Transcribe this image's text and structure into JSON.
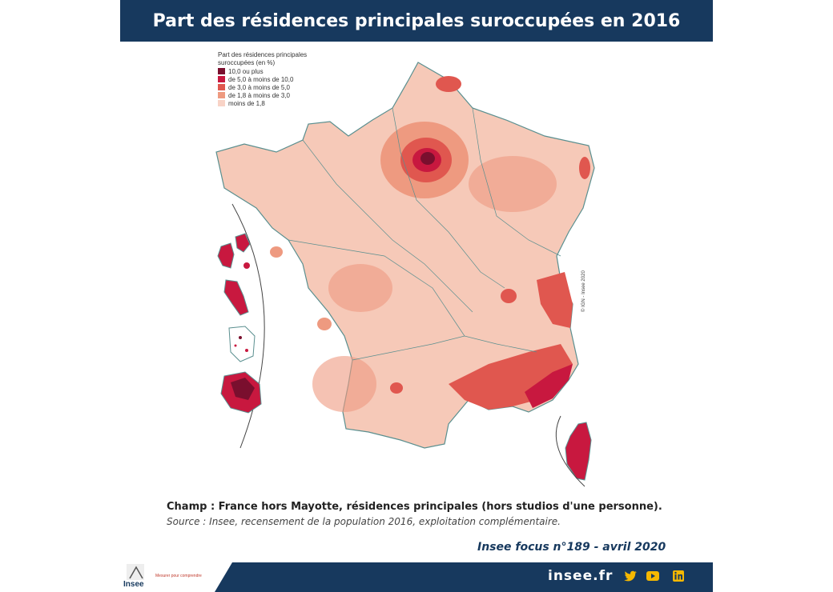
{
  "header": {
    "title": "Part des résidences principales suroccupées en 2016"
  },
  "legend": {
    "title": "Part des résidences principales suroccupées (en %)",
    "items": [
      {
        "label": "10,0 ou plus",
        "color": "#7a0f2e"
      },
      {
        "label": "de 5,0 à moins de 10,0",
        "color": "#c8183f"
      },
      {
        "label": "de 3,0 à moins de 5,0",
        "color": "#e0574f"
      },
      {
        "label": "de 1,8 à moins de 3,0",
        "color": "#ee9a80"
      },
      {
        "label": "moins de 1,8",
        "color": "#f8d3c6"
      }
    ]
  },
  "map": {
    "copyright": "© IGN - Insee 2020"
  },
  "notes": {
    "champ": "Champ : France hors Mayotte, résidences principales (hors studios d'une personne).",
    "source": "Source : Insee, recensement de la population 2016, exploitation complémentaire."
  },
  "publication": "Insee focus n°189 - avril 2020",
  "footer": {
    "website": "insee.fr",
    "logo_text": "Insee",
    "tagline": "Mesurer pour comprendre",
    "icons": [
      "twitter-icon",
      "youtube-icon",
      "linkedin-icon"
    ]
  },
  "colors": {
    "brand": "#17395e"
  }
}
